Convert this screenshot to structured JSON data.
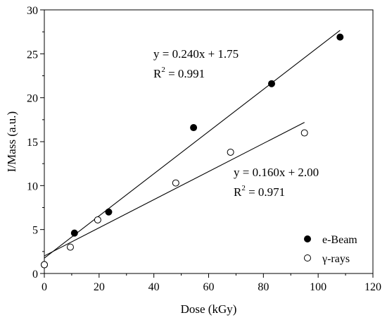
{
  "chart_data": {
    "type": "scatter",
    "xlabel": "Dose (kGy)",
    "ylabel": "I/Mass (a.u.)",
    "xlim": [
      0,
      120
    ],
    "ylim": [
      0,
      30
    ],
    "x_ticks": [
      0,
      20,
      40,
      60,
      80,
      100,
      120
    ],
    "y_ticks": [
      0,
      5,
      10,
      15,
      20,
      25,
      30
    ],
    "grid": false,
    "legend_position": "bottom-right",
    "series": [
      {
        "name": "e-Beam",
        "marker": "filled-circle",
        "color": "#000000",
        "points": [
          {
            "x": 0,
            "y": 1.0
          },
          {
            "x": 11,
            "y": 4.6
          },
          {
            "x": 23.5,
            "y": 7.0
          },
          {
            "x": 54.5,
            "y": 16.6
          },
          {
            "x": 83,
            "y": 21.6
          },
          {
            "x": 108,
            "y": 26.9
          }
        ],
        "fit": {
          "slope": 0.24,
          "intercept": 1.75,
          "x_range": [
            0,
            108
          ]
        },
        "equation_line1": "y = 0.240x + 1.75",
        "equation_line2_prefix": "R",
        "equation_line2_sup": "2",
        "equation_line2_suffix": " = 0.991"
      },
      {
        "name": "γ-rays",
        "marker": "open-circle",
        "color": "#000000",
        "points": [
          {
            "x": 0,
            "y": 1.0
          },
          {
            "x": 9.5,
            "y": 3.0
          },
          {
            "x": 19.5,
            "y": 6.1
          },
          {
            "x": 48,
            "y": 10.3
          },
          {
            "x": 68,
            "y": 13.8
          },
          {
            "x": 95,
            "y": 16.0
          }
        ],
        "fit": {
          "slope": 0.16,
          "intercept": 2.0,
          "x_range": [
            0,
            95
          ]
        },
        "equation_line1": "y = 0.160x + 2.00",
        "equation_line2_prefix": "R",
        "equation_line2_sup": "2",
        "equation_line2_suffix": " = 0.971"
      }
    ]
  }
}
